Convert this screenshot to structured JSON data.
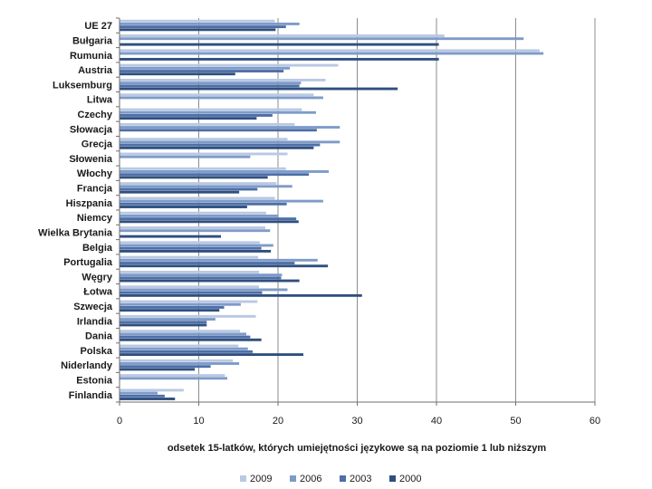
{
  "chart_data": {
    "type": "bar",
    "orientation": "horizontal",
    "categories": [
      "UE 27",
      "Bułgaria",
      "Rumunia",
      "Austria",
      "Luksemburg",
      "Litwa",
      "Czechy",
      "Słowacja",
      "Grecja",
      "Słowenia",
      "Włochy",
      "Francja",
      "Hiszpania",
      "Niemcy",
      "Wielka Brytania",
      "Belgia",
      "Portugalia",
      "Węgry",
      "Łotwa",
      "Szwecja",
      "Irlandia",
      "Dania",
      "Polska",
      "Niderlandy",
      "Estonia",
      "Finlandia"
    ],
    "series": [
      {
        "name": "2009",
        "color": "#b9c9e4",
        "values": [
          19.6,
          41.0,
          53.0,
          27.6,
          26.0,
          24.5,
          23.0,
          22.1,
          21.2,
          21.2,
          21.0,
          19.8,
          19.6,
          18.5,
          18.4,
          17.7,
          17.5,
          17.6,
          17.6,
          17.4,
          17.2,
          15.2,
          15.0,
          14.3,
          13.3,
          8.1
        ]
      },
      {
        "name": "2006",
        "color": "#7e9bc8",
        "values": [
          22.7,
          51.0,
          53.5,
          21.5,
          22.9,
          25.7,
          24.8,
          27.8,
          27.8,
          16.5,
          26.4,
          21.8,
          25.7,
          20.0,
          19.0,
          19.4,
          25.0,
          20.5,
          21.2,
          15.3,
          12.1,
          16.0,
          16.2,
          15.1,
          13.6,
          4.8
        ]
      },
      {
        "name": "2003",
        "color": "#4e6fa7",
        "values": [
          21.0,
          null,
          null,
          20.7,
          22.7,
          null,
          19.3,
          24.9,
          25.3,
          null,
          23.9,
          17.4,
          21.1,
          22.3,
          null,
          17.9,
          22.1,
          20.4,
          18.0,
          13.2,
          11.0,
          16.5,
          16.8,
          11.5,
          null,
          5.7
        ]
      },
      {
        "name": "2000",
        "color": "#2f4f7f",
        "values": [
          19.7,
          40.3,
          40.3,
          14.6,
          35.1,
          null,
          17.3,
          null,
          24.5,
          null,
          18.7,
          15.1,
          16.1,
          22.6,
          12.8,
          19.1,
          26.3,
          22.7,
          30.6,
          12.6,
          11.0,
          17.9,
          23.2,
          9.5,
          null,
          7.0
        ]
      }
    ],
    "xlim": [
      0,
      60
    ],
    "xticks": [
      "0",
      "10",
      "20",
      "30",
      "40",
      "50",
      "60"
    ],
    "xlabel": "odsetek 15-latków, których umiejętności językowe są na poziomie 1 lub niższym",
    "ylabel": "",
    "grid": "vertical gridlines",
    "legend": "bottom"
  }
}
